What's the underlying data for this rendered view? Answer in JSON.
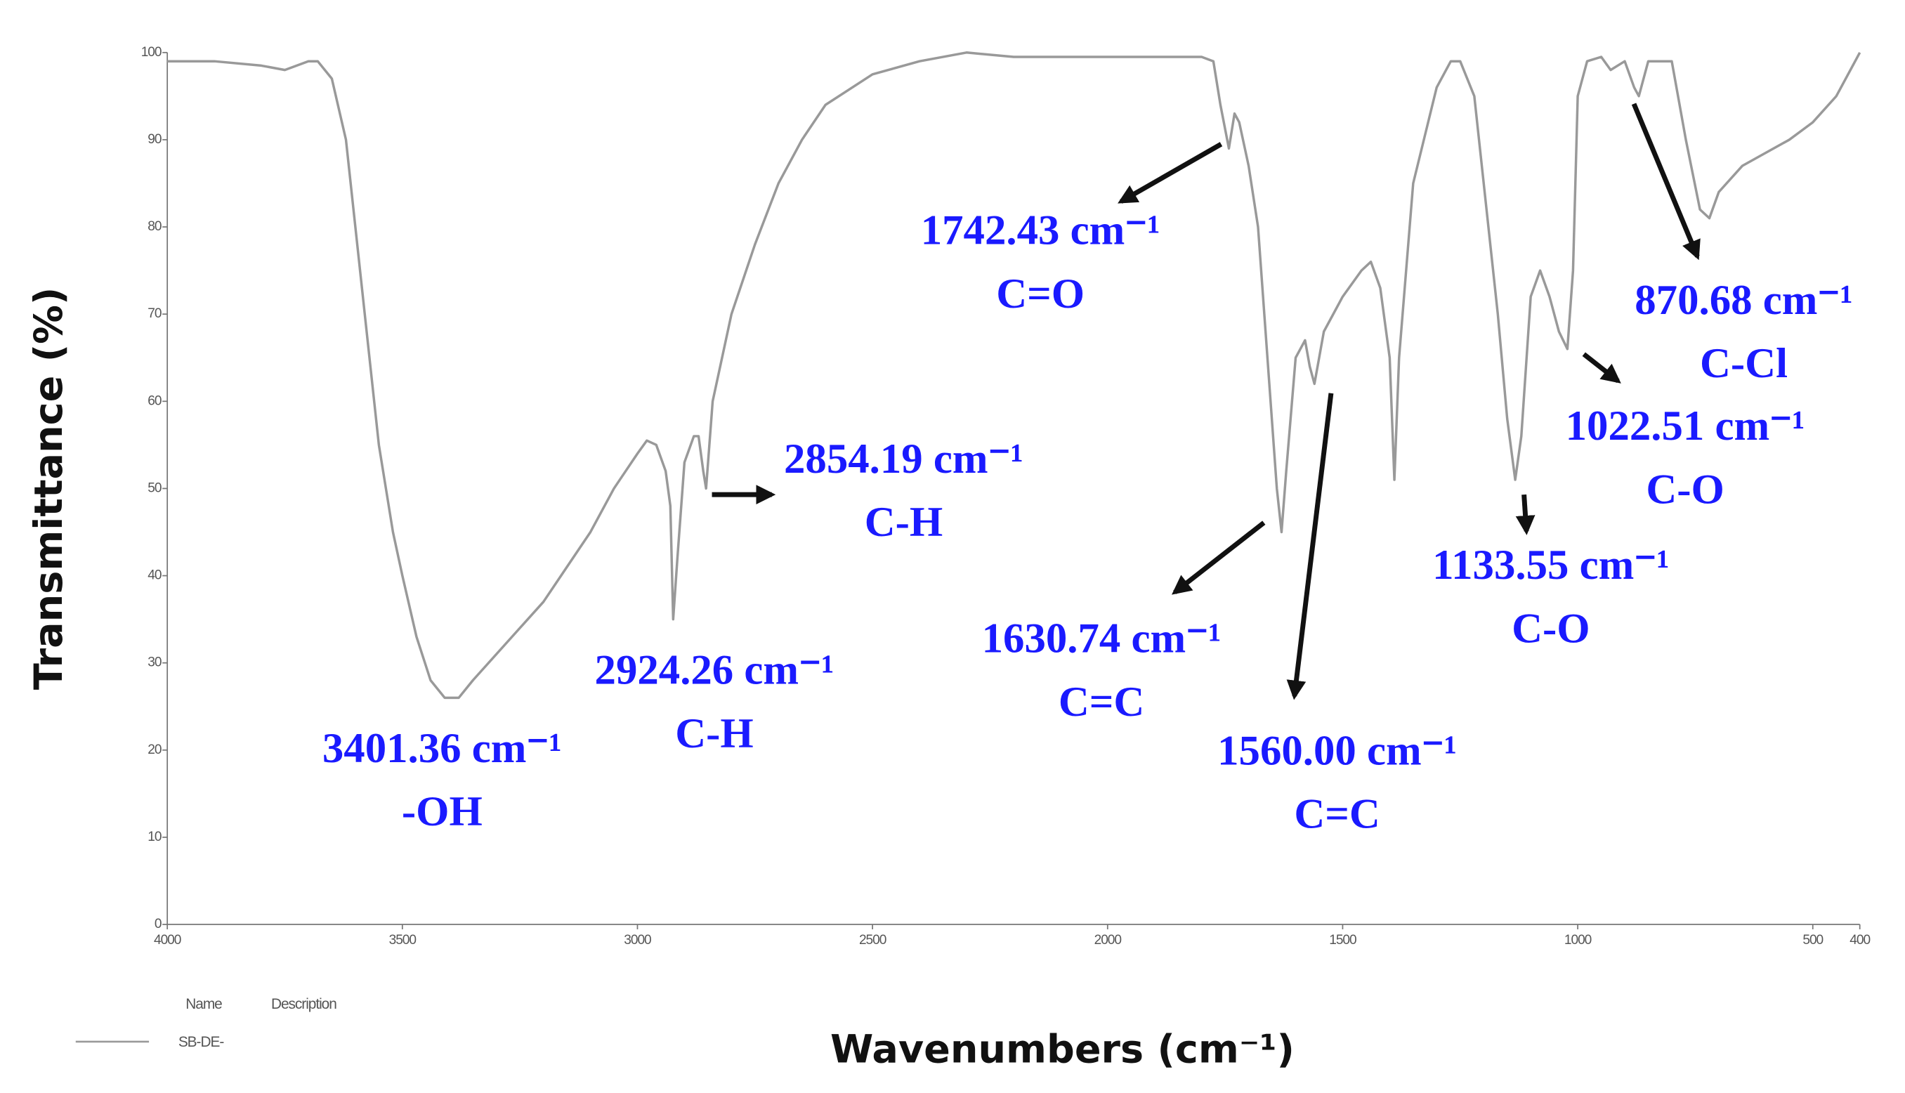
{
  "chart_data": {
    "type": "line",
    "x_label": "Wavenumbers (cm⁻¹)",
    "y_label": "Transmittance (%)",
    "xlim": [
      4000,
      400
    ],
    "ylim": [
      0,
      100
    ],
    "xticks": [
      4000,
      3500,
      3000,
      2500,
      2000,
      1500,
      1000,
      500,
      400
    ],
    "yticks": [
      0,
      10,
      20,
      30,
      40,
      50,
      60,
      70,
      80,
      90,
      100
    ],
    "grid": false,
    "legend_headers": [
      "Name",
      "Description"
    ],
    "x": [
      4000,
      3900,
      3800,
      3750,
      3700,
      3680,
      3650,
      3620,
      3600,
      3580,
      3550,
      3520,
      3500,
      3470,
      3440,
      3410,
      3380,
      3350,
      3300,
      3250,
      3200,
      3150,
      3100,
      3050,
      3000,
      2980,
      2960,
      2940,
      2930,
      2924,
      2915,
      2900,
      2880,
      2870,
      2860,
      2854,
      2840,
      2800,
      2750,
      2700,
      2650,
      2600,
      2500,
      2400,
      2300,
      2200,
      2100,
      2000,
      1900,
      1800,
      1775,
      1760,
      1742,
      1730,
      1720,
      1700,
      1680,
      1660,
      1640,
      1630,
      1620,
      1600,
      1580,
      1570,
      1560,
      1540,
      1500,
      1460,
      1440,
      1420,
      1400,
      1390,
      1380,
      1350,
      1300,
      1270,
      1250,
      1220,
      1200,
      1170,
      1150,
      1133,
      1120,
      1100,
      1080,
      1060,
      1040,
      1022,
      1010,
      1000,
      980,
      950,
      930,
      900,
      880,
      870,
      850,
      800,
      770,
      740,
      720,
      700,
      650,
      600,
      550,
      500,
      450,
      400
    ],
    "series": [
      {
        "name": "SB-DE-",
        "color": "#999999",
        "values": [
          99,
          99,
          98.5,
          98,
          99,
          99,
          97,
          90,
          80,
          70,
          55,
          45,
          40,
          33,
          28,
          26,
          26,
          28,
          31,
          34,
          37,
          41,
          45,
          50,
          54,
          55.5,
          55,
          52,
          48,
          35,
          42,
          53,
          56,
          56,
          52,
          50,
          60,
          70,
          78,
          85,
          90,
          94,
          97.5,
          99,
          100,
          99.5,
          99.5,
          99.5,
          99.5,
          99.5,
          99,
          94,
          89,
          93,
          92,
          87,
          80,
          65,
          50,
          45,
          52,
          65,
          67,
          64,
          62,
          68,
          72,
          75,
          76,
          73,
          65,
          51,
          65,
          85,
          96,
          99,
          99,
          95,
          85,
          70,
          58,
          51,
          56,
          72,
          75,
          72,
          68,
          66,
          75,
          95,
          99,
          99.5,
          98,
          99,
          96,
          95,
          99,
          99,
          90,
          82,
          81,
          84,
          87,
          88.5,
          90,
          92,
          95,
          100
        ]
      }
    ],
    "annotations": [
      {
        "text": "3401.36 cm⁻¹",
        "label": "-OH"
      },
      {
        "text": "2924.26 cm⁻¹",
        "label": "C-H"
      },
      {
        "text": "2854.19 cm⁻¹",
        "label": "C-H"
      },
      {
        "text": "1742.43 cm⁻¹",
        "label": "C=O"
      },
      {
        "text": "1630.74 cm⁻¹",
        "label": "C=C"
      },
      {
        "text": "1560.00 cm⁻¹",
        "label": "C=C"
      },
      {
        "text": "1133.55 cm⁻¹",
        "label": "C-O"
      },
      {
        "text": "1022.51 cm⁻¹",
        "label": "C-O"
      },
      {
        "text": "870.68 cm⁻¹",
        "label": "C-Cl"
      }
    ]
  }
}
